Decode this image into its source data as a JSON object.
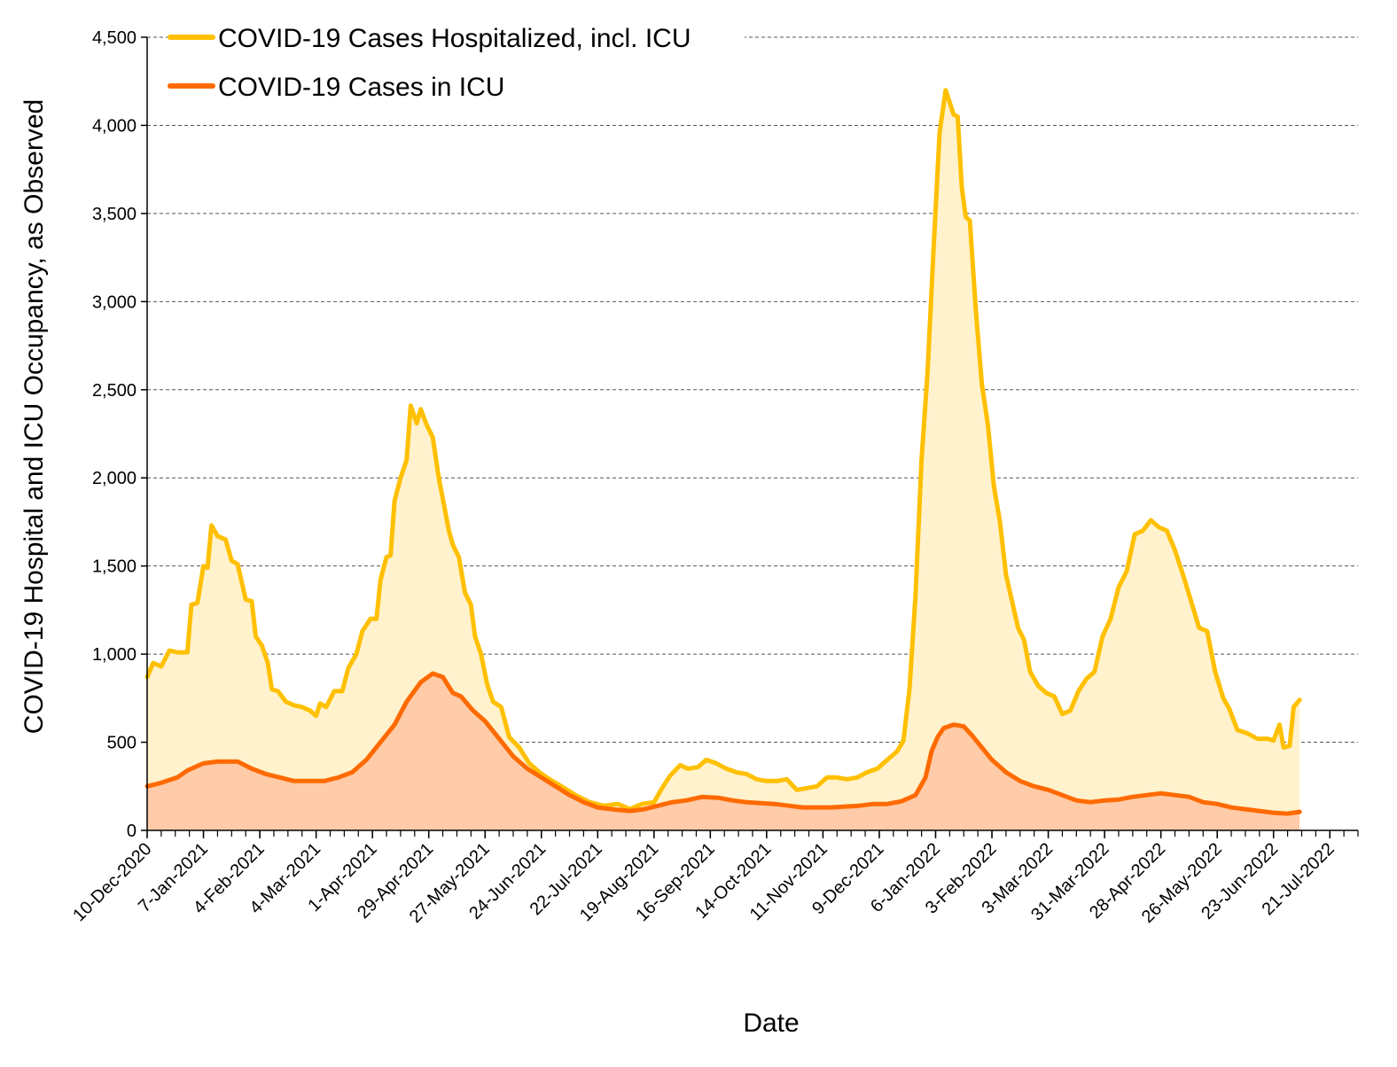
{
  "chart_data": {
    "type": "area",
    "title": "",
    "xlabel": "Date",
    "ylabel": "COVID-19 Hospital and ICU Occupancy, as Observed",
    "ylim": [
      0,
      4500
    ],
    "xlim": [
      "2020-12-10",
      "2022-08-04"
    ],
    "y_ticks": [
      0,
      500,
      1000,
      1500,
      2000,
      2500,
      3000,
      3500,
      4000,
      4500
    ],
    "y_tick_labels": [
      "0",
      "500",
      "1,000",
      "1,500",
      "2,000",
      "2,500",
      "3,000",
      "3,500",
      "4,000",
      "4,500"
    ],
    "x_tick_dates": [
      "2020-12-10",
      "2021-01-07",
      "2021-02-04",
      "2021-03-04",
      "2021-04-01",
      "2021-04-29",
      "2021-05-27",
      "2021-06-24",
      "2021-07-22",
      "2021-08-19",
      "2021-09-16",
      "2021-10-14",
      "2021-11-11",
      "2021-12-09",
      "2022-01-06",
      "2022-02-03",
      "2022-03-03",
      "2022-03-31",
      "2022-04-28",
      "2022-05-26",
      "2022-06-23",
      "2022-07-21"
    ],
    "x_tick_labels": [
      "10-Dec-2020",
      "7-Jan-2021",
      "4-Feb-2021",
      "4-Mar-2021",
      "1-Apr-2021",
      "29-Apr-2021",
      "27-May-2021",
      "24-Jun-2021",
      "22-Jul-2021",
      "19-Aug-2021",
      "16-Sep-2021",
      "14-Oct-2021",
      "11-Nov-2021",
      "9-Dec-2021",
      "6-Jan-2022",
      "3-Feb-2022",
      "3-Mar-2022",
      "31-Mar-2022",
      "28-Apr-2022",
      "26-May-2022",
      "23-Jun-2022",
      "21-Jul-2022"
    ],
    "grid": "horizontal dashed",
    "legend_position": "top-left",
    "series": [
      {
        "name": "COVID-19 Cases Hospitalized, incl. ICU",
        "color": "#FFC000",
        "fill": "#FFF2CC",
        "points": [
          [
            "2020-12-10",
            870
          ],
          [
            "2020-12-13",
            950
          ],
          [
            "2020-12-17",
            930
          ],
          [
            "2020-12-21",
            1020
          ],
          [
            "2020-12-25",
            1010
          ],
          [
            "2020-12-30",
            1010
          ],
          [
            "2021-01-01",
            1280
          ],
          [
            "2021-01-04",
            1290
          ],
          [
            "2021-01-07",
            1500
          ],
          [
            "2021-01-09",
            1490
          ],
          [
            "2021-01-11",
            1730
          ],
          [
            "2021-01-14",
            1670
          ],
          [
            "2021-01-18",
            1650
          ],
          [
            "2021-01-21",
            1530
          ],
          [
            "2021-01-24",
            1510
          ],
          [
            "2021-01-28",
            1310
          ],
          [
            "2021-01-31",
            1300
          ],
          [
            "2021-02-02",
            1100
          ],
          [
            "2021-02-05",
            1050
          ],
          [
            "2021-02-08",
            950
          ],
          [
            "2021-02-10",
            800
          ],
          [
            "2021-02-13",
            790
          ],
          [
            "2021-02-17",
            730
          ],
          [
            "2021-02-21",
            710
          ],
          [
            "2021-02-25",
            700
          ],
          [
            "2021-03-01",
            680
          ],
          [
            "2021-03-04",
            650
          ],
          [
            "2021-03-06",
            720
          ],
          [
            "2021-03-09",
            700
          ],
          [
            "2021-03-13",
            790
          ],
          [
            "2021-03-17",
            790
          ],
          [
            "2021-03-20",
            920
          ],
          [
            "2021-03-24",
            1000
          ],
          [
            "2021-03-27",
            1130
          ],
          [
            "2021-03-31",
            1200
          ],
          [
            "2021-04-03",
            1200
          ],
          [
            "2021-04-05",
            1420
          ],
          [
            "2021-04-08",
            1550
          ],
          [
            "2021-04-10",
            1560
          ],
          [
            "2021-04-12",
            1870
          ],
          [
            "2021-04-15",
            2000
          ],
          [
            "2021-04-18",
            2100
          ],
          [
            "2021-04-20",
            2410
          ],
          [
            "2021-04-23",
            2310
          ],
          [
            "2021-04-25",
            2390
          ],
          [
            "2021-04-28",
            2300
          ],
          [
            "2021-05-01",
            2230
          ],
          [
            "2021-05-04",
            2000
          ],
          [
            "2021-05-06",
            1880
          ],
          [
            "2021-05-09",
            1700
          ],
          [
            "2021-05-11",
            1620
          ],
          [
            "2021-05-14",
            1550
          ],
          [
            "2021-05-17",
            1350
          ],
          [
            "2021-05-20",
            1280
          ],
          [
            "2021-05-22",
            1100
          ],
          [
            "2021-05-25",
            1000
          ],
          [
            "2021-05-28",
            830
          ],
          [
            "2021-05-31",
            730
          ],
          [
            "2021-06-04",
            700
          ],
          [
            "2021-06-08",
            530
          ],
          [
            "2021-06-13",
            470
          ],
          [
            "2021-06-18",
            380
          ],
          [
            "2021-06-23",
            330
          ],
          [
            "2021-06-28",
            290
          ],
          [
            "2021-07-04",
            250
          ],
          [
            "2021-07-11",
            200
          ],
          [
            "2021-07-18",
            160
          ],
          [
            "2021-07-25",
            140
          ],
          [
            "2021-08-01",
            150
          ],
          [
            "2021-08-07",
            120
          ],
          [
            "2021-08-13",
            150
          ],
          [
            "2021-08-19",
            160
          ],
          [
            "2021-08-23",
            240
          ],
          [
            "2021-08-27",
            310
          ],
          [
            "2021-09-01",
            370
          ],
          [
            "2021-09-05",
            350
          ],
          [
            "2021-09-10",
            360
          ],
          [
            "2021-09-14",
            400
          ],
          [
            "2021-09-19",
            380
          ],
          [
            "2021-09-24",
            350
          ],
          [
            "2021-09-29",
            330
          ],
          [
            "2021-10-04",
            320
          ],
          [
            "2021-10-09",
            290
          ],
          [
            "2021-10-14",
            280
          ],
          [
            "2021-10-19",
            280
          ],
          [
            "2021-10-24",
            290
          ],
          [
            "2021-10-29",
            230
          ],
          [
            "2021-11-03",
            240
          ],
          [
            "2021-11-08",
            250
          ],
          [
            "2021-11-13",
            300
          ],
          [
            "2021-11-18",
            300
          ],
          [
            "2021-11-23",
            290
          ],
          [
            "2021-11-28",
            300
          ],
          [
            "2021-12-03",
            330
          ],
          [
            "2021-12-08",
            350
          ],
          [
            "2021-12-13",
            400
          ],
          [
            "2021-12-18",
            450
          ],
          [
            "2021-12-21",
            510
          ],
          [
            "2021-12-24",
            800
          ],
          [
            "2021-12-27",
            1330
          ],
          [
            "2021-12-30",
            2100
          ],
          [
            "2022-01-02",
            2600
          ],
          [
            "2022-01-05",
            3300
          ],
          [
            "2022-01-08",
            3960
          ],
          [
            "2022-01-11",
            4200
          ],
          [
            "2022-01-13",
            4130
          ],
          [
            "2022-01-15",
            4060
          ],
          [
            "2022-01-17",
            4050
          ],
          [
            "2022-01-19",
            3650
          ],
          [
            "2022-01-21",
            3480
          ],
          [
            "2022-01-23",
            3460
          ],
          [
            "2022-01-26",
            2950
          ],
          [
            "2022-01-29",
            2530
          ],
          [
            "2022-02-01",
            2300
          ],
          [
            "2022-02-04",
            1950
          ],
          [
            "2022-02-07",
            1750
          ],
          [
            "2022-02-10",
            1450
          ],
          [
            "2022-02-13",
            1300
          ],
          [
            "2022-02-16",
            1150
          ],
          [
            "2022-02-19",
            1080
          ],
          [
            "2022-02-22",
            900
          ],
          [
            "2022-02-26",
            820
          ],
          [
            "2022-03-02",
            780
          ],
          [
            "2022-03-06",
            760
          ],
          [
            "2022-03-10",
            660
          ],
          [
            "2022-03-14",
            680
          ],
          [
            "2022-03-18",
            790
          ],
          [
            "2022-03-22",
            860
          ],
          [
            "2022-03-26",
            900
          ],
          [
            "2022-03-30",
            1100
          ],
          [
            "2022-04-03",
            1200
          ],
          [
            "2022-04-07",
            1380
          ],
          [
            "2022-04-11",
            1470
          ],
          [
            "2022-04-15",
            1680
          ],
          [
            "2022-04-19",
            1700
          ],
          [
            "2022-04-23",
            1760
          ],
          [
            "2022-04-27",
            1720
          ],
          [
            "2022-05-01",
            1700
          ],
          [
            "2022-05-05",
            1590
          ],
          [
            "2022-05-09",
            1450
          ],
          [
            "2022-05-13",
            1300
          ],
          [
            "2022-05-17",
            1150
          ],
          [
            "2022-05-21",
            1130
          ],
          [
            "2022-05-25",
            900
          ],
          [
            "2022-05-29",
            750
          ],
          [
            "2022-06-01",
            690
          ],
          [
            "2022-06-05",
            570
          ],
          [
            "2022-06-10",
            550
          ],
          [
            "2022-06-15",
            520
          ],
          [
            "2022-06-20",
            520
          ],
          [
            "2022-06-23",
            510
          ],
          [
            "2022-06-26",
            600
          ],
          [
            "2022-06-28",
            470
          ],
          [
            "2022-07-01",
            480
          ],
          [
            "2022-07-03",
            700
          ],
          [
            "2022-07-06",
            740
          ]
        ]
      },
      {
        "name": "COVID-19 Cases in ICU",
        "color": "#FF6A00",
        "fill": "#FFCBA8",
        "points": [
          [
            "2020-12-10",
            250
          ],
          [
            "2020-12-17",
            270
          ],
          [
            "2020-12-25",
            300
          ],
          [
            "2020-12-30",
            340
          ],
          [
            "2021-01-07",
            380
          ],
          [
            "2021-01-14",
            390
          ],
          [
            "2021-01-24",
            390
          ],
          [
            "2021-01-31",
            350
          ],
          [
            "2021-02-07",
            320
          ],
          [
            "2021-02-14",
            300
          ],
          [
            "2021-02-21",
            280
          ],
          [
            "2021-03-01",
            280
          ],
          [
            "2021-03-08",
            280
          ],
          [
            "2021-03-15",
            300
          ],
          [
            "2021-03-22",
            330
          ],
          [
            "2021-03-29",
            400
          ],
          [
            "2021-04-05",
            500
          ],
          [
            "2021-04-12",
            600
          ],
          [
            "2021-04-18",
            730
          ],
          [
            "2021-04-25",
            840
          ],
          [
            "2021-05-01",
            890
          ],
          [
            "2021-05-06",
            870
          ],
          [
            "2021-05-11",
            780
          ],
          [
            "2021-05-15",
            760
          ],
          [
            "2021-05-21",
            680
          ],
          [
            "2021-05-27",
            620
          ],
          [
            "2021-06-03",
            520
          ],
          [
            "2021-06-10",
            420
          ],
          [
            "2021-06-17",
            350
          ],
          [
            "2021-06-24",
            300
          ],
          [
            "2021-07-01",
            250
          ],
          [
            "2021-07-08",
            200
          ],
          [
            "2021-07-15",
            160
          ],
          [
            "2021-07-22",
            130
          ],
          [
            "2021-07-29",
            120
          ],
          [
            "2021-08-07",
            110
          ],
          [
            "2021-08-14",
            120
          ],
          [
            "2021-08-21",
            140
          ],
          [
            "2021-08-28",
            160
          ],
          [
            "2021-09-04",
            170
          ],
          [
            "2021-09-12",
            190
          ],
          [
            "2021-09-20",
            185
          ],
          [
            "2021-09-27",
            170
          ],
          [
            "2021-10-04",
            160
          ],
          [
            "2021-10-11",
            155
          ],
          [
            "2021-10-18",
            150
          ],
          [
            "2021-10-25",
            140
          ],
          [
            "2021-11-01",
            130
          ],
          [
            "2021-11-08",
            130
          ],
          [
            "2021-11-15",
            130
          ],
          [
            "2021-11-22",
            135
          ],
          [
            "2021-11-29",
            140
          ],
          [
            "2021-12-06",
            150
          ],
          [
            "2021-12-13",
            150
          ],
          [
            "2021-12-20",
            165
          ],
          [
            "2021-12-27",
            200
          ],
          [
            "2022-01-01",
            300
          ],
          [
            "2022-01-04",
            450
          ],
          [
            "2022-01-07",
            530
          ],
          [
            "2022-01-10",
            580
          ],
          [
            "2022-01-15",
            600
          ],
          [
            "2022-01-20",
            590
          ],
          [
            "2022-01-24",
            540
          ],
          [
            "2022-01-29",
            470
          ],
          [
            "2022-02-03",
            400
          ],
          [
            "2022-02-10",
            330
          ],
          [
            "2022-02-17",
            280
          ],
          [
            "2022-02-24",
            250
          ],
          [
            "2022-03-03",
            230
          ],
          [
            "2022-03-10",
            200
          ],
          [
            "2022-03-17",
            170
          ],
          [
            "2022-03-24",
            160
          ],
          [
            "2022-03-31",
            170
          ],
          [
            "2022-04-07",
            175
          ],
          [
            "2022-04-14",
            190
          ],
          [
            "2022-04-21",
            200
          ],
          [
            "2022-04-28",
            210
          ],
          [
            "2022-05-05",
            200
          ],
          [
            "2022-05-12",
            190
          ],
          [
            "2022-05-19",
            160
          ],
          [
            "2022-05-26",
            150
          ],
          [
            "2022-06-02",
            130
          ],
          [
            "2022-06-09",
            120
          ],
          [
            "2022-06-16",
            110
          ],
          [
            "2022-06-23",
            100
          ],
          [
            "2022-06-30",
            95
          ],
          [
            "2022-07-06",
            105
          ]
        ]
      }
    ]
  }
}
